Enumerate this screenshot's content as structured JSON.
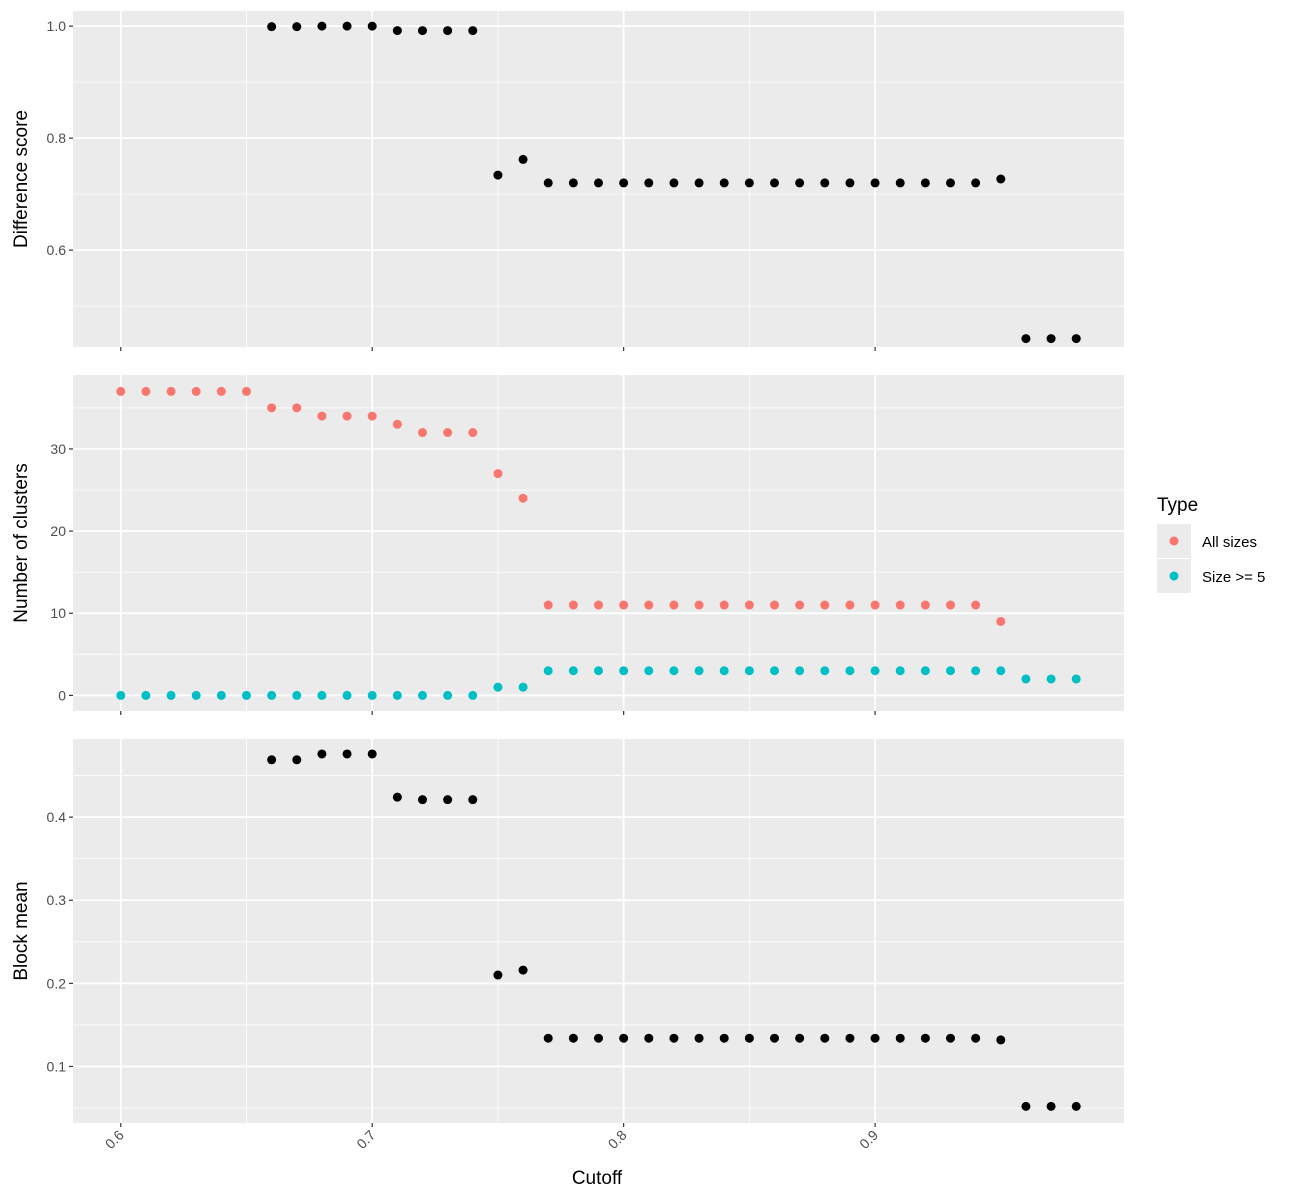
{
  "chart_data": {
    "type": "scatter",
    "xlabel": "Cutoff",
    "x_ticks": [
      "0.6",
      "0.7",
      "0.8",
      "0.9"
    ],
    "x_tick_values": [
      0.6,
      0.7,
      0.8,
      0.9
    ],
    "xlim": [
      0.581,
      0.999
    ],
    "grid": true,
    "legend": {
      "title": "Type",
      "position": "right",
      "entries": [
        {
          "label": "All sizes",
          "color": "#F8766D"
        },
        {
          "label": "Size >= 5",
          "color": "#00BFC4"
        }
      ]
    },
    "panels": [
      {
        "ylabel": "Difference score",
        "ylim": [
          0.427,
          1.027
        ],
        "y_ticks": [
          "0.6",
          "0.8",
          "1.0"
        ],
        "y_tick_values": [
          0.6,
          0.8,
          1.0
        ],
        "y_minor": [
          0.5,
          0.7,
          0.9
        ],
        "series": [
          {
            "color": "#000000",
            "x": [
              0.66,
              0.67,
              0.68,
              0.69,
              0.7,
              0.71,
              0.72,
              0.73,
              0.74,
              0.75,
              0.76,
              0.77,
              0.78,
              0.79,
              0.8,
              0.81,
              0.82,
              0.83,
              0.84,
              0.85,
              0.86,
              0.87,
              0.88,
              0.89,
              0.9,
              0.91,
              0.92,
              0.93,
              0.94,
              0.95,
              0.96,
              0.97,
              0.98
            ],
            "y": [
              0.999,
              0.999,
              1.0,
              1.0,
              1.0,
              0.992,
              0.992,
              0.992,
              0.992,
              0.734,
              0.762,
              0.72,
              0.72,
              0.72,
              0.72,
              0.72,
              0.72,
              0.72,
              0.72,
              0.72,
              0.72,
              0.72,
              0.72,
              0.72,
              0.72,
              0.72,
              0.72,
              0.72,
              0.72,
              0.727,
              0.442,
              0.442,
              0.442
            ]
          }
        ]
      },
      {
        "ylabel": "Number of clusters",
        "ylim": [
          -1.9,
          39.0
        ],
        "y_ticks": [
          "0",
          "10",
          "20",
          "30"
        ],
        "y_tick_values": [
          0,
          10,
          20,
          30
        ],
        "y_minor": [
          5,
          15,
          25,
          35
        ],
        "series": [
          {
            "name": "All sizes",
            "color": "#F8766D",
            "x": [
              0.6,
              0.61,
              0.62,
              0.63,
              0.64,
              0.65,
              0.66,
              0.67,
              0.68,
              0.69,
              0.7,
              0.71,
              0.72,
              0.73,
              0.74,
              0.75,
              0.76,
              0.77,
              0.78,
              0.79,
              0.8,
              0.81,
              0.82,
              0.83,
              0.84,
              0.85,
              0.86,
              0.87,
              0.88,
              0.89,
              0.9,
              0.91,
              0.92,
              0.93,
              0.94,
              0.95
            ],
            "y": [
              37,
              37,
              37,
              37,
              37,
              37,
              35,
              35,
              34,
              34,
              34,
              33,
              32,
              32,
              32,
              27,
              24,
              11,
              11,
              11,
              11,
              11,
              11,
              11,
              11,
              11,
              11,
              11,
              11,
              11,
              11,
              11,
              11,
              11,
              11,
              9
            ]
          },
          {
            "name": "Size >= 5",
            "color": "#00BFC4",
            "x": [
              0.6,
              0.61,
              0.62,
              0.63,
              0.64,
              0.65,
              0.66,
              0.67,
              0.68,
              0.69,
              0.7,
              0.71,
              0.72,
              0.73,
              0.74,
              0.75,
              0.76,
              0.77,
              0.78,
              0.79,
              0.8,
              0.81,
              0.82,
              0.83,
              0.84,
              0.85,
              0.86,
              0.87,
              0.88,
              0.89,
              0.9,
              0.91,
              0.92,
              0.93,
              0.94,
              0.95,
              0.96,
              0.97,
              0.98
            ],
            "y": [
              0,
              0,
              0,
              0,
              0,
              0,
              0,
              0,
              0,
              0,
              0,
              0,
              0,
              0,
              0,
              1,
              1,
              3,
              3,
              3,
              3,
              3,
              3,
              3,
              3,
              3,
              3,
              3,
              3,
              3,
              3,
              3,
              3,
              3,
              3,
              3,
              2,
              2,
              2
            ]
          }
        ]
      },
      {
        "ylabel": "Block mean",
        "ylim": [
          0.032,
          0.494
        ],
        "y_ticks": [
          "0.1",
          "0.2",
          "0.3",
          "0.4"
        ],
        "y_tick_values": [
          0.1,
          0.2,
          0.3,
          0.4
        ],
        "y_minor": [
          0.05,
          0.15,
          0.25,
          0.35,
          0.45
        ],
        "series": [
          {
            "color": "#000000",
            "x": [
              0.66,
              0.67,
              0.68,
              0.69,
              0.7,
              0.71,
              0.72,
              0.73,
              0.74,
              0.75,
              0.76,
              0.77,
              0.78,
              0.79,
              0.8,
              0.81,
              0.82,
              0.83,
              0.84,
              0.85,
              0.86,
              0.87,
              0.88,
              0.89,
              0.9,
              0.91,
              0.92,
              0.93,
              0.94,
              0.95,
              0.96,
              0.97,
              0.98
            ],
            "y": [
              0.469,
              0.469,
              0.476,
              0.476,
              0.476,
              0.424,
              0.421,
              0.421,
              0.421,
              0.21,
              0.216,
              0.134,
              0.134,
              0.134,
              0.134,
              0.134,
              0.134,
              0.134,
              0.134,
              0.134,
              0.134,
              0.134,
              0.134,
              0.134,
              0.134,
              0.134,
              0.134,
              0.134,
              0.134,
              0.132,
              0.052,
              0.052,
              0.052
            ]
          }
        ]
      }
    ]
  }
}
